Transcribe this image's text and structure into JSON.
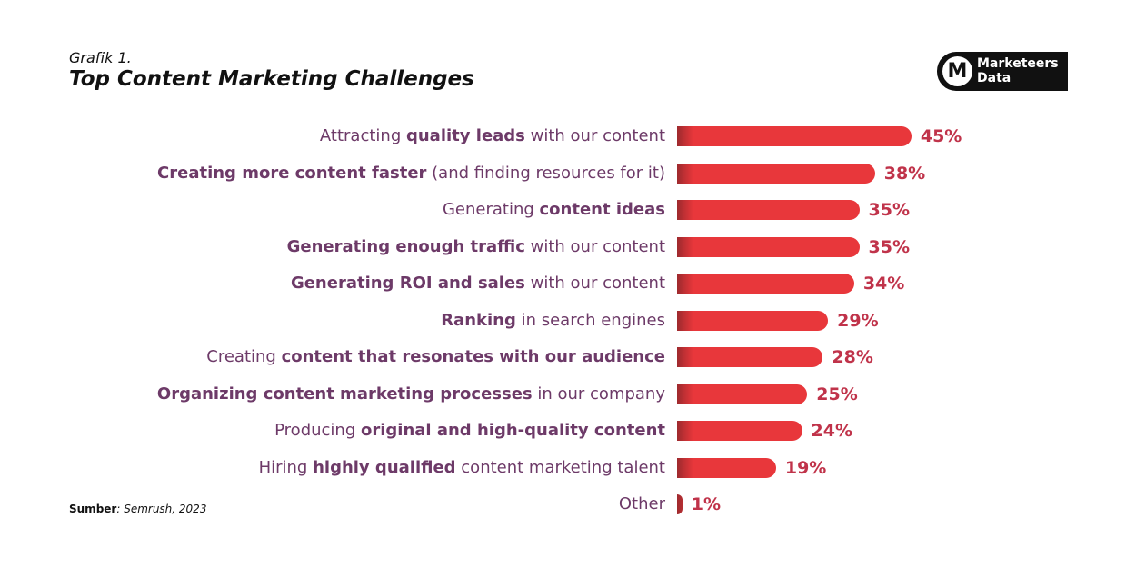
{
  "header": {
    "kicker": "Grafik 1.",
    "title": "Top Content Marketing Challenges"
  },
  "logo": {
    "text": "Marketeers Data"
  },
  "source": [
    {
      "text": "Sumber",
      "bold": true
    },
    {
      "text": ": Semrush, 2023",
      "bold": false
    }
  ],
  "chart_data": {
    "type": "bar",
    "orientation": "horizontal",
    "color": "#e8373b",
    "categories": [
      [
        {
          "text": "Attracting ",
          "bold": false
        },
        {
          "text": "quality leads",
          "bold": true
        },
        {
          "text": " with our content",
          "bold": false
        }
      ],
      [
        {
          "text": "Creating more content faster",
          "bold": true
        },
        {
          "text": " (and finding resources for it)",
          "bold": false
        }
      ],
      [
        {
          "text": "Generating ",
          "bold": false
        },
        {
          "text": "content ideas",
          "bold": true
        }
      ],
      [
        {
          "text": "Generating enough traffic",
          "bold": true
        },
        {
          "text": " with our content",
          "bold": false
        }
      ],
      [
        {
          "text": "Generating ROI and sales",
          "bold": true
        },
        {
          "text": " with our content",
          "bold": false
        }
      ],
      [
        {
          "text": "Ranking",
          "bold": true
        },
        {
          "text": " in search engines",
          "bold": false
        }
      ],
      [
        {
          "text": "Creating ",
          "bold": false
        },
        {
          "text": "content that resonates with our audience",
          "bold": true
        }
      ],
      [
        {
          "text": "Organizing content marketing processes",
          "bold": true
        },
        {
          "text": " in our company",
          "bold": false
        }
      ],
      [
        {
          "text": "Producing ",
          "bold": false
        },
        {
          "text": "original and high-quality content",
          "bold": true
        }
      ],
      [
        {
          "text": "Hiring ",
          "bold": false
        },
        {
          "text": "highly qualified",
          "bold": true
        },
        {
          "text": " content marketing talent",
          "bold": false
        }
      ],
      [
        {
          "text": "Other",
          "bold": false
        }
      ]
    ],
    "values": [
      45,
      38,
      35,
      35,
      34,
      29,
      28,
      25,
      24,
      19,
      1
    ],
    "value_labels": [
      "45%",
      "38%",
      "35%",
      "35%",
      "34%",
      "29%",
      "28%",
      "25%",
      "24%",
      "19%",
      "1%"
    ]
  }
}
